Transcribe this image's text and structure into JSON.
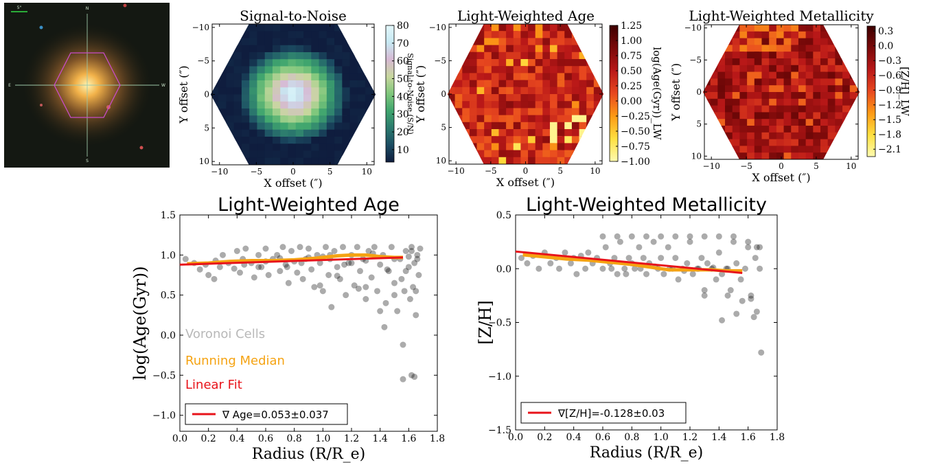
{
  "thumbnail": {
    "scale_label": "5\"",
    "compass": {
      "n": "N",
      "s": "S",
      "e": "E",
      "w": "W"
    }
  },
  "maps": [
    {
      "title": "Signal-to-Noise",
      "xlabel": "X offset (″)",
      "ylabel": "Y offset (″)",
      "x_ticks": [
        "−10",
        "−5",
        "0",
        "5",
        "10"
      ],
      "y_ticks": [
        "−10",
        "−5",
        "0",
        "5",
        "10"
      ],
      "colorbar_label": "Signal-to-Noise (S/N)",
      "colorbar_ticks": [
        "80",
        "70",
        "60",
        "50",
        "40",
        "30",
        "20",
        "10"
      ],
      "colormap": [
        "#0f1d3e",
        "#1c4d63",
        "#2b7a6e",
        "#3fa56e",
        "#7fc77c",
        "#c8d79e",
        "#d7b9d3",
        "#c7e9f3",
        "#e3f7fb"
      ],
      "colorbar_range": [
        3,
        80
      ]
    },
    {
      "title": "Light-Weighted Age",
      "xlabel": "X offset (″)",
      "ylabel": "Y offset (″)",
      "x_ticks": [
        "−10",
        "−5",
        "0",
        "5",
        "10"
      ],
      "y_ticks": [
        "−10",
        "−5",
        "0",
        "5",
        "10"
      ],
      "colorbar_label": "log(Age(Gyr))_LW",
      "colorbar_ticks": [
        "1.25",
        "1.00",
        "0.75",
        "0.50",
        "0.25",
        "0.00",
        "−0.25",
        "−0.50",
        "−0.75",
        "−1.00"
      ],
      "colormap": [
        "#fffbb0",
        "#ffe040",
        "#fd9a15",
        "#e8481f",
        "#b91818",
        "#7a0909",
        "#3d0000"
      ],
      "colorbar_range": [
        -1.0,
        1.25
      ]
    },
    {
      "title": "Light-Weighted Metallicity",
      "xlabel": "X offset (″)",
      "ylabel": "Y offset (″)",
      "x_ticks": [
        "−10",
        "−5",
        "0",
        "5",
        "10"
      ],
      "y_ticks": [
        "−10",
        "−5",
        "0",
        "5",
        "10"
      ],
      "colorbar_label": "[Z/H]_LW",
      "colorbar_ticks": [
        "0.3",
        "0.0",
        "−0.3",
        "−0.6",
        "−0.9",
        "−1.2",
        "−1.5",
        "−1.8",
        "−2.1"
      ],
      "colormap": [
        "#fffbb0",
        "#ffe040",
        "#fd9a15",
        "#e8481f",
        "#b91818",
        "#7a0909",
        "#3d0000"
      ],
      "colorbar_range": [
        -2.25,
        0.4
      ]
    }
  ],
  "chart_data": [
    {
      "type": "scatter",
      "title": "Light-Weighted Age",
      "xlabel": "Radius (R/R_e)",
      "ylabel": "log(Age(Gyr))",
      "xlim": [
        0.0,
        1.8
      ],
      "ylim": [
        -1.2,
        1.5
      ],
      "x_ticks": [
        "0.0",
        "0.2",
        "0.4",
        "0.6",
        "0.8",
        "1.0",
        "1.2",
        "1.4",
        "1.6",
        "1.8"
      ],
      "y_ticks": [
        "1.5",
        "1.0",
        "0.5",
        "0.0",
        "−0.5",
        "−1.0"
      ],
      "annotations": [
        "Voronoi Cells",
        "Running Median",
        "Linear Fit"
      ],
      "legend": "∇ Age=0.053±0.037",
      "colors": {
        "points": "#000000",
        "median": "#f5a312",
        "fit": "#e8131a",
        "voronoi_text": "#b8b8b8"
      },
      "series": [
        {
          "name": "Voronoi Cells",
          "x": [
            0.04,
            0.1,
            0.14,
            0.18,
            0.2,
            0.24,
            0.25,
            0.28,
            0.3,
            0.34,
            0.38,
            0.4,
            0.42,
            0.44,
            0.46,
            0.5,
            0.52,
            0.55,
            0.57,
            0.6,
            0.62,
            0.65,
            0.68,
            0.7,
            0.72,
            0.74,
            0.76,
            0.78,
            0.8,
            0.82,
            0.84,
            0.86,
            0.88,
            0.9,
            0.92,
            0.94,
            0.96,
            0.98,
            1.0,
            1.02,
            1.04,
            1.05,
            1.06,
            1.08,
            1.1,
            1.12,
            1.14,
            1.16,
            1.18,
            1.2,
            1.22,
            1.24,
            1.26,
            1.28,
            1.3,
            1.32,
            1.34,
            1.36,
            1.38,
            1.4,
            1.42,
            1.44,
            1.46,
            1.48,
            1.5,
            1.52,
            1.54,
            1.55,
            1.56,
            1.57,
            1.58,
            1.6,
            1.61,
            1.62,
            1.63,
            1.64,
            1.65,
            1.66,
            1.67,
            1.68,
            0.45,
            0.6,
            0.75,
            0.9,
            1.05,
            1.2,
            1.35,
            1.5,
            1.58,
            1.62,
            1.66,
            0.55,
            0.7,
            0.85,
            1.0,
            1.15,
            1.3,
            1.45,
            1.6,
            1.65,
            1.1,
            1.3,
            1.5,
            1.56,
            1.43,
            1.62,
            1.64,
            0.98,
            1.25,
            1.4
          ],
          "y": [
            0.95,
            0.9,
            0.82,
            0.88,
            0.75,
            0.7,
            0.93,
            0.85,
            1.0,
            0.9,
            0.83,
            1.05,
            0.78,
            0.95,
            1.08,
            0.9,
            0.72,
            1.0,
            0.85,
            1.08,
            0.75,
            0.95,
            1.0,
            0.8,
            1.1,
            0.88,
            0.65,
            1.05,
            0.92,
            0.78,
            1.1,
            0.7,
            0.95,
            1.08,
            0.82,
            0.6,
            1.0,
            0.9,
            0.55,
            1.1,
            0.75,
            0.95,
            0.35,
            1.05,
            0.85,
            0.7,
            1.1,
            0.5,
            0.9,
            1.0,
            0.62,
            1.1,
            0.8,
            0.95,
            0.45,
            1.05,
            0.72,
            1.1,
            0.55,
            0.88,
            1.0,
            0.4,
            0.8,
            1.1,
            0.65,
            0.3,
            0.95,
            0.7,
            -0.12,
            0.55,
            1.05,
            0.85,
            0.45,
            1.1,
            0.6,
            0.9,
            0.25,
            1.0,
            0.75,
            1.08,
            0.88,
            0.92,
            0.85,
            0.97,
            1.0,
            0.9,
            1.02,
            0.95,
            0.8,
            1.05,
            0.95,
            0.85,
            0.96,
            0.9,
            0.98,
            0.88,
            0.93,
            0.82,
            0.98,
            0.55,
            0.74,
            0.6,
            0.5,
            -0.55,
            0.1,
            -0.5,
            -0.52,
            0.62,
            0.58,
            0.3
          ]
        },
        {
          "name": "Running Median",
          "x": [
            0.05,
            0.2,
            0.35,
            0.5,
            0.65,
            0.8,
            0.95,
            1.1,
            1.2,
            1.3,
            1.4,
            1.5,
            1.56
          ],
          "y": [
            0.89,
            0.9,
            0.92,
            0.93,
            0.93,
            0.94,
            0.96,
            0.99,
            1.0,
            1.0,
            0.98,
            0.97,
            0.97
          ]
        },
        {
          "name": "Linear Fit",
          "x": [
            0.0,
            1.56
          ],
          "y": [
            0.88,
            0.97
          ]
        }
      ]
    },
    {
      "type": "scatter",
      "title": "Light-Weighted Metallicity",
      "xlabel": "Radius (R/R_e)",
      "ylabel": "[Z/H]",
      "xlim": [
        0.0,
        1.8
      ],
      "ylim": [
        -1.5,
        0.5
      ],
      "x_ticks": [
        "0.0",
        "0.2",
        "0.4",
        "0.6",
        "0.8",
        "1.0",
        "1.2",
        "1.4",
        "1.6",
        "1.8"
      ],
      "y_ticks": [
        "0.5",
        "0.0",
        "−0.5",
        "−1.0",
        "−1.5"
      ],
      "legend": "∇[Z/H]=-0.128±0.03",
      "colors": {
        "points": "#000000",
        "median": "#f5a312",
        "fit": "#e8131a"
      },
      "series": [
        {
          "name": "Voronoi Cells",
          "x": [
            0.04,
            0.08,
            0.12,
            0.16,
            0.2,
            0.24,
            0.28,
            0.3,
            0.34,
            0.38,
            0.4,
            0.42,
            0.45,
            0.48,
            0.5,
            0.53,
            0.56,
            0.6,
            0.62,
            0.65,
            0.68,
            0.7,
            0.72,
            0.75,
            0.78,
            0.8,
            0.82,
            0.85,
            0.88,
            0.9,
            0.92,
            0.95,
            0.98,
            1.0,
            1.02,
            1.05,
            1.08,
            1.1,
            1.12,
            1.15,
            1.18,
            1.2,
            1.22,
            1.25,
            1.28,
            1.3,
            1.32,
            1.35,
            1.38,
            1.4,
            1.42,
            1.45,
            1.48,
            1.5,
            1.52,
            1.55,
            1.58,
            1.6,
            1.62,
            1.65,
            1.68,
            0.6,
            0.7,
            0.8,
            0.9,
            1.0,
            1.1,
            1.2,
            1.3,
            1.4,
            1.5,
            1.6,
            1.66,
            1.68,
            0.66,
            0.86,
            1.06,
            1.26,
            1.46,
            1.56,
            1.64,
            1.66,
            1.69,
            1.3,
            1.42,
            1.52,
            1.62,
            0.76,
            0.96,
            1.16,
            1.36,
            1.46
          ],
          "y": [
            0.1,
            0.05,
            0.12,
            0.0,
            0.15,
            0.05,
            0.1,
            0.0,
            0.15,
            0.05,
            0.1,
            -0.05,
            0.12,
            0.0,
            0.15,
            0.05,
            0.1,
            0.0,
            0.2,
            0.05,
            0.1,
            -0.05,
            0.25,
            0.0,
            0.1,
            0.05,
            0.0,
            0.2,
            0.1,
            -0.05,
            0.05,
            0.25,
            0.0,
            0.1,
            -0.05,
            0.2,
            0.0,
            0.1,
            -0.1,
            0.0,
            0.05,
            0.25,
            -0.05,
            0.0,
            0.1,
            -0.2,
            0.05,
            0.0,
            -0.1,
            0.15,
            -0.05,
            0.0,
            -0.2,
            0.3,
            0.05,
            -0.1,
            0.0,
            0.2,
            -0.25,
            0.1,
            0.0,
            0.3,
            0.3,
            0.3,
            0.3,
            0.3,
            0.3,
            0.3,
            0.3,
            0.3,
            0.25,
            0.25,
            0.2,
            0.2,
            0.0,
            0.0,
            0.0,
            0.0,
            0.0,
            -0.3,
            -0.45,
            -0.4,
            -0.78,
            -0.25,
            -0.48,
            -0.42,
            -0.28,
            -0.05,
            0.02,
            -0.02,
            0.01,
            -0.25
          ]
        },
        {
          "name": "Running Median",
          "x": [
            0.05,
            0.2,
            0.35,
            0.5,
            0.65,
            0.8,
            0.95,
            1.05,
            1.15,
            1.25,
            1.35,
            1.45,
            1.56
          ],
          "y": [
            0.13,
            0.11,
            0.09,
            0.08,
            0.06,
            0.04,
            0.01,
            -0.01,
            -0.01,
            -0.01,
            -0.01,
            -0.02,
            -0.02
          ]
        },
        {
          "name": "Linear Fit",
          "x": [
            0.0,
            1.56
          ],
          "y": [
            0.16,
            -0.04
          ]
        }
      ]
    }
  ]
}
